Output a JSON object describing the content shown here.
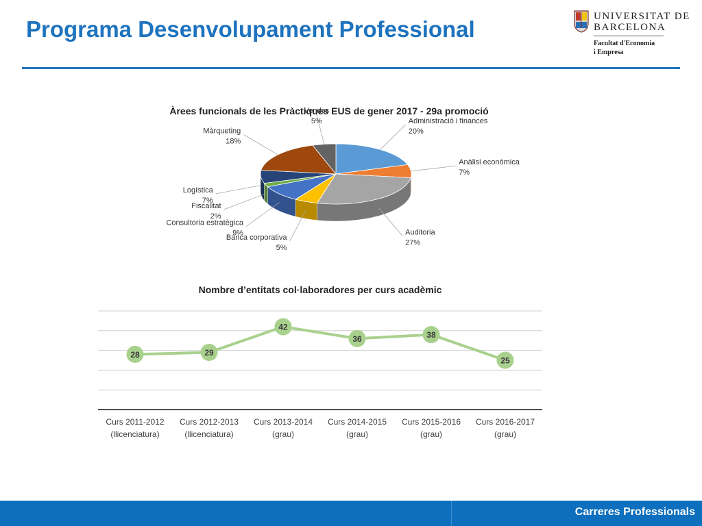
{
  "header": {
    "title": "Programa Desenvolupament Professional",
    "logo": {
      "line1": "UNIVERSITAT DE",
      "line2": "BARCELONA",
      "faculty_line1": "Facultat d'Economia",
      "faculty_line2": "i Empresa"
    }
  },
  "footer": {
    "label": "Carreres Professionals"
  },
  "chart_data": [
    {
      "type": "pie",
      "title": "Àrees funcionals de les Pràctiques EUS de gener 2017 - 29a promoció",
      "slices": [
        {
          "label": "Administració i finances",
          "value": 20,
          "value_label": "20%",
          "color": "#5b9bd5"
        },
        {
          "label": "Anàlisi econòmica",
          "value": 7,
          "value_label": "7%",
          "color": "#ed7d31"
        },
        {
          "label": "Auditoria",
          "value": 27,
          "value_label": "27%",
          "color": "#a5a5a5"
        },
        {
          "label": "Banca corporativa",
          "value": 5,
          "value_label": "5%",
          "color": "#ffc000"
        },
        {
          "label": "Consultoria estratègica",
          "value": 9,
          "value_label": "9%",
          "color": "#4472c4"
        },
        {
          "label": "Fiscalitat",
          "value": 2,
          "value_label": "2%",
          "color": "#70ad47"
        },
        {
          "label": "Logística",
          "value": 7,
          "value_label": "7%",
          "color": "#264478"
        },
        {
          "label": "Màrqueting",
          "value": 18,
          "value_label": "18%",
          "color": "#9e480e"
        },
        {
          "label": "Vendes",
          "value": 5,
          "value_label": "5%",
          "color": "#636363"
        }
      ]
    },
    {
      "type": "line",
      "title": "Nombre d’entitats col·laboradores per curs acadèmic",
      "categories": [
        [
          "Curs 2011-2012",
          "(llicenciatura)"
        ],
        [
          "Curs 2012-2013",
          "(llicenciatura)"
        ],
        [
          "Curs 2013-2014",
          "(grau)"
        ],
        [
          "Curs 2014-2015",
          "(grau)"
        ],
        [
          "Curs 2015-2016",
          "(grau)"
        ],
        [
          "Curs 2016-2017",
          "(grau)"
        ]
      ],
      "values": [
        28,
        29,
        42,
        36,
        38,
        25
      ],
      "ylim": [
        0,
        50
      ],
      "grid": true,
      "color": "#a9d18e"
    }
  ]
}
